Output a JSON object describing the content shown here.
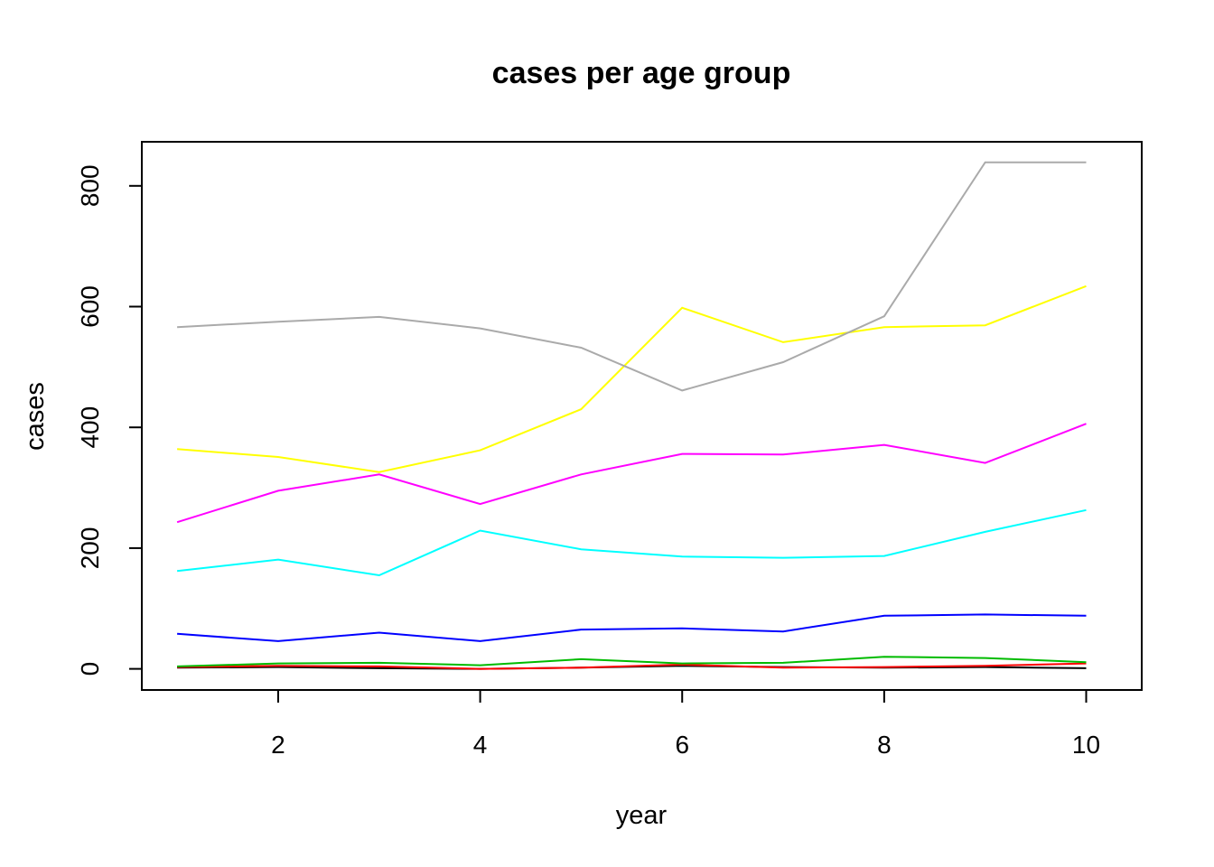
{
  "chart_data": {
    "type": "line",
    "title": "cases per age group",
    "xlabel": "year",
    "ylabel": "cases",
    "x": [
      1,
      2,
      3,
      4,
      5,
      6,
      7,
      8,
      9,
      10
    ],
    "xlim": [
      0.65,
      10.55
    ],
    "ylim": [
      -35,
      873
    ],
    "xticks": [
      2,
      4,
      6,
      8,
      10
    ],
    "yticks": [
      0,
      200,
      400,
      600,
      800
    ],
    "grid": false,
    "legend": "none",
    "series": [
      {
        "color": "#000000",
        "values": [
          2,
          3,
          1,
          0,
          2,
          5,
          3,
          2,
          3,
          1
        ]
      },
      {
        "color": "#ff0000",
        "values": [
          3,
          5,
          4,
          0,
          2,
          7,
          2,
          3,
          5,
          9
        ]
      },
      {
        "color": "#00bb00",
        "values": [
          4,
          9,
          10,
          6,
          16,
          9,
          10,
          20,
          18,
          11
        ]
      },
      {
        "color": "#0000ff",
        "values": [
          58,
          46,
          60,
          46,
          65,
          67,
          62,
          88,
          90,
          88
        ]
      },
      {
        "color": "#00ffff",
        "values": [
          162,
          181,
          155,
          229,
          198,
          186,
          184,
          187,
          227,
          263
        ]
      },
      {
        "color": "#ff00ff",
        "values": [
          243,
          295,
          322,
          273,
          322,
          356,
          355,
          371,
          341,
          406
        ]
      },
      {
        "color": "#ffff00",
        "values": [
          364,
          351,
          326,
          362,
          430,
          598,
          541,
          566,
          569,
          634
        ]
      },
      {
        "color": "#aaaaaa",
        "values": [
          566,
          575,
          583,
          564,
          532,
          461,
          508,
          584,
          839,
          839
        ]
      }
    ]
  }
}
